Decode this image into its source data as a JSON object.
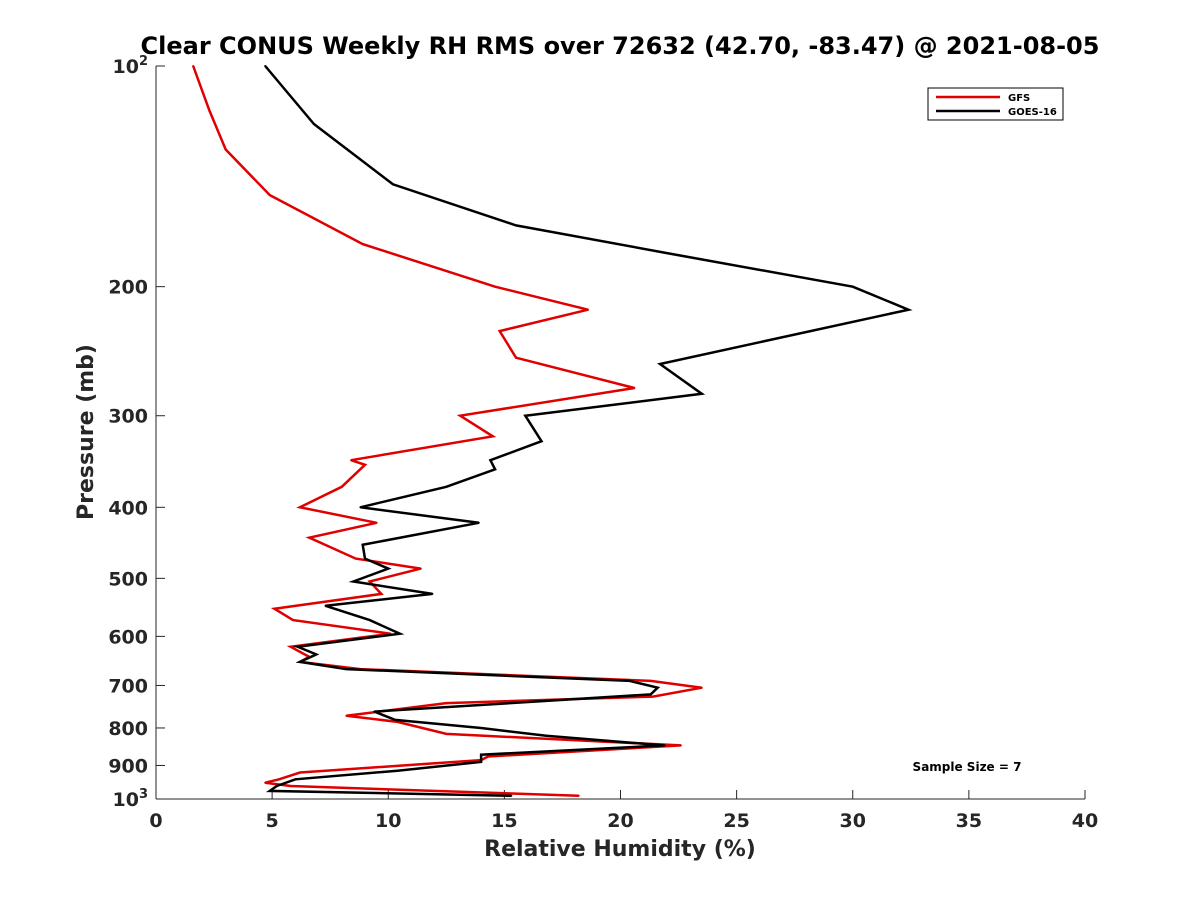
{
  "chart_data": {
    "type": "line",
    "title": "Clear CONUS Weekly RH RMS over 72632 (42.70, -83.47) @ 2021-08-05",
    "xlabel": "Relative Humidity (%)",
    "ylabel": "Pressure (mb)",
    "xlim": [
      0,
      40
    ],
    "ylim": [
      100,
      1000
    ],
    "y_scale": "log",
    "y_reversed": true,
    "grid": false,
    "legend_position": "top-right",
    "x_ticks": [
      "0",
      "5",
      "10",
      "15",
      "20",
      "25",
      "30",
      "35",
      "40"
    ],
    "y_ticks": [
      {
        "value": 100,
        "base": "10",
        "exp": "2"
      },
      {
        "value": 200,
        "label": "200"
      },
      {
        "value": 300,
        "label": "300"
      },
      {
        "value": 400,
        "label": "400"
      },
      {
        "value": 500,
        "label": "500"
      },
      {
        "value": 600,
        "label": "600"
      },
      {
        "value": 700,
        "label": "700"
      },
      {
        "value": 800,
        "label": "800"
      },
      {
        "value": 900,
        "label": "900"
      },
      {
        "value": 1000,
        "base": "10",
        "exp": "3"
      }
    ],
    "annotation": "Sample Size = 7",
    "series": [
      {
        "name": "GFS",
        "color": "#e00000",
        "points": [
          [
            1.6,
            100
          ],
          [
            2.3,
            115
          ],
          [
            3.0,
            130
          ],
          [
            4.9,
            150
          ],
          [
            8.9,
            175
          ],
          [
            14.6,
            200
          ],
          [
            18.6,
            215
          ],
          [
            14.8,
            230
          ],
          [
            15.5,
            250
          ],
          [
            20.6,
            275
          ],
          [
            13.1,
            300
          ],
          [
            14.5,
            320
          ],
          [
            8.4,
            345
          ],
          [
            9.0,
            350
          ],
          [
            8.0,
            375
          ],
          [
            6.2,
            400
          ],
          [
            9.5,
            420
          ],
          [
            6.6,
            440
          ],
          [
            8.6,
            470
          ],
          [
            11.4,
            485
          ],
          [
            9.2,
            505
          ],
          [
            9.7,
            525
          ],
          [
            5.1,
            550
          ],
          [
            5.9,
            570
          ],
          [
            10.1,
            595
          ],
          [
            5.8,
            620
          ],
          [
            6.6,
            640
          ],
          [
            6.2,
            650
          ],
          [
            8.8,
            665
          ],
          [
            21.3,
            690
          ],
          [
            23.5,
            705
          ],
          [
            21.4,
            725
          ],
          [
            12.5,
            740
          ],
          [
            8.2,
            770
          ],
          [
            10.4,
            785
          ],
          [
            12.5,
            815
          ],
          [
            22.6,
            845
          ],
          [
            14.3,
            875
          ],
          [
            14.0,
            885
          ],
          [
            6.2,
            920
          ],
          [
            5.3,
            940
          ],
          [
            4.7,
            950
          ],
          [
            5.8,
            960
          ],
          [
            18.2,
            990
          ]
        ]
      },
      {
        "name": "GOES-16",
        "color": "#000000",
        "points": [
          [
            4.7,
            100
          ],
          [
            6.8,
            120
          ],
          [
            10.2,
            145
          ],
          [
            15.5,
            165
          ],
          [
            22.0,
            180
          ],
          [
            30.0,
            200
          ],
          [
            32.4,
            215
          ],
          [
            21.7,
            255
          ],
          [
            23.5,
            280
          ],
          [
            15.9,
            300
          ],
          [
            16.6,
            325
          ],
          [
            14.4,
            345
          ],
          [
            14.6,
            355
          ],
          [
            12.5,
            375
          ],
          [
            8.8,
            400
          ],
          [
            13.9,
            420
          ],
          [
            8.9,
            450
          ],
          [
            9.0,
            470
          ],
          [
            10.0,
            485
          ],
          [
            8.5,
            505
          ],
          [
            11.9,
            525
          ],
          [
            7.3,
            545
          ],
          [
            9.2,
            570
          ],
          [
            10.5,
            595
          ],
          [
            6.1,
            620
          ],
          [
            6.9,
            635
          ],
          [
            6.2,
            650
          ],
          [
            8.2,
            665
          ],
          [
            20.4,
            690
          ],
          [
            21.6,
            705
          ],
          [
            21.3,
            720
          ],
          [
            9.4,
            760
          ],
          [
            10.3,
            780
          ],
          [
            14.0,
            800
          ],
          [
            16.8,
            820
          ],
          [
            21.9,
            845
          ],
          [
            14.0,
            870
          ],
          [
            14.0,
            890
          ],
          [
            10.4,
            915
          ],
          [
            6.0,
            940
          ],
          [
            5.2,
            960
          ],
          [
            4.9,
            975
          ],
          [
            15.3,
            990
          ]
        ]
      }
    ]
  }
}
